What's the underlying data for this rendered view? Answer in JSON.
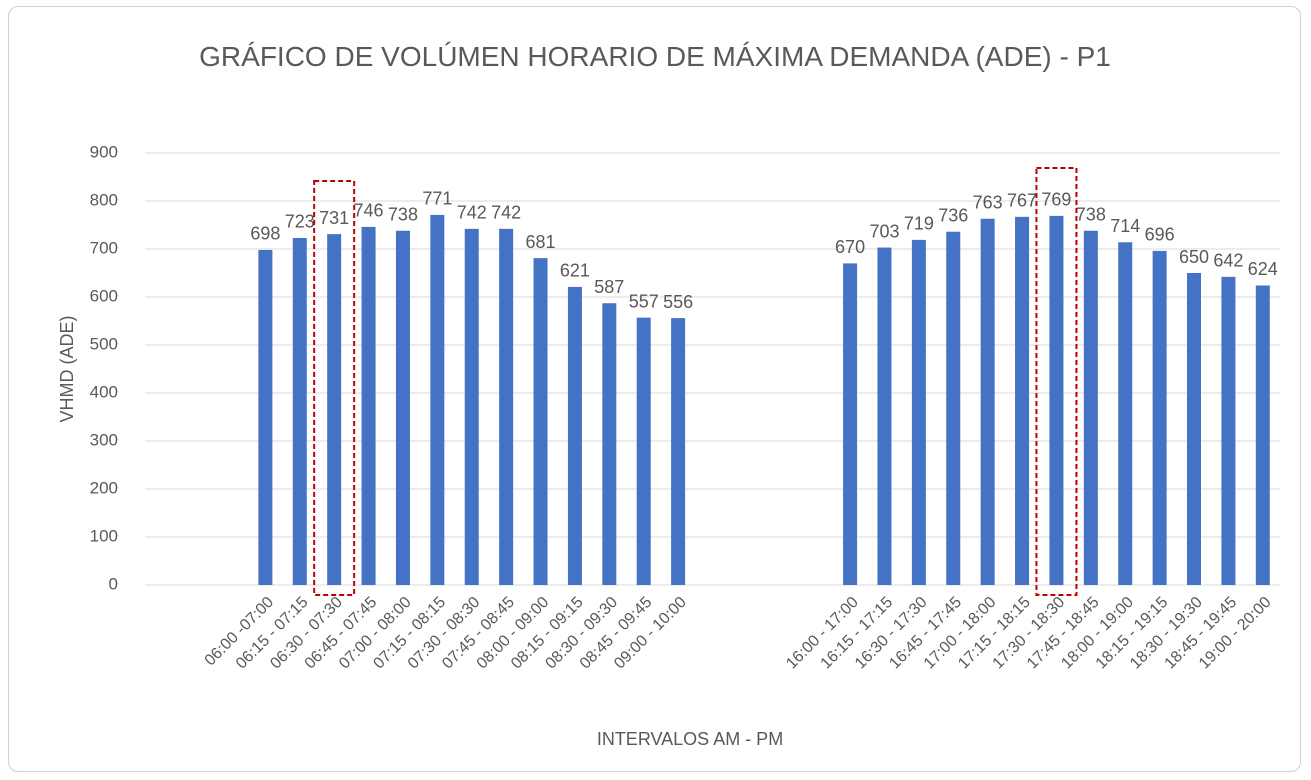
{
  "chart_data": {
    "type": "bar",
    "title": "GRÁFICO DE VOLÚMEN HORARIO DE MÁXIMA DEMANDA (ADE) - P1",
    "y_label": "VHMD (ADE)",
    "x_label": "INTERVALOS AM - PM",
    "categories": [
      null,
      null,
      null,
      "06:00 -07:00",
      "06:15 - 07:15",
      "06:30 - 07:30",
      "06:45 - 07:45",
      "07:00 - 08:00",
      "07:15 - 08:15",
      "07:30 - 08:30",
      "07:45 - 08:45",
      "08:00 - 09:00",
      "08:15 - 09:15",
      "08:30 - 09:30",
      "08:45 - 09:45",
      "09:00 - 10:00",
      null,
      null,
      null,
      null,
      "16:00 - 17:00",
      "16:15 - 17:15",
      "16:30 - 17:30",
      "16:45 - 17:45",
      "17:00 - 18:00",
      "17:15 - 18:15",
      "17:30 - 18:30",
      "17:45 - 18:45",
      "18:00 - 19:00",
      "18:15 - 19:15",
      "18:30 - 19:30",
      "18:45 - 19:45",
      "19:00 - 20:00"
    ],
    "values": [
      null,
      null,
      null,
      698,
      723,
      731,
      746,
      738,
      771,
      742,
      742,
      681,
      621,
      587,
      557,
      556,
      null,
      null,
      null,
      null,
      670,
      703,
      719,
      736,
      763,
      767,
      769,
      738,
      714,
      696,
      650,
      642,
      624
    ],
    "color": "#4472c4",
    "ylim": [
      0,
      900
    ],
    "yticks": [
      0,
      100,
      200,
      300,
      400,
      500,
      600,
      700,
      800,
      900
    ],
    "grid": true
  }
}
